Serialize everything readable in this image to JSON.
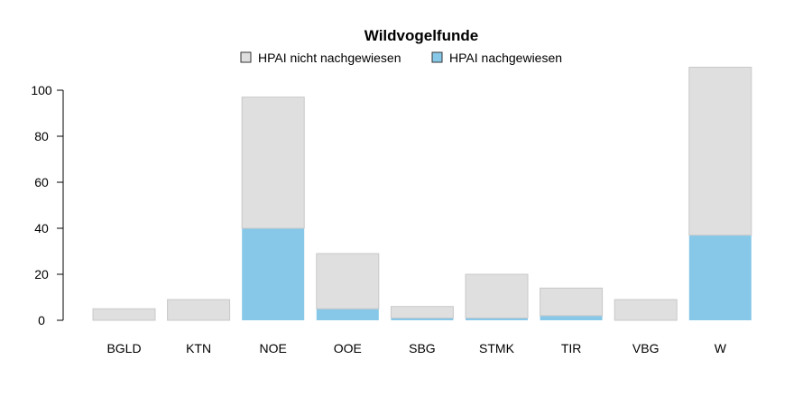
{
  "chart_data": {
    "type": "bar",
    "stacked": true,
    "title": "Wildvogelfunde",
    "xlabel": "",
    "ylabel": "",
    "categories": [
      "BGLD",
      "KTN",
      "NOE",
      "OOE",
      "SBG",
      "STMK",
      "TIR",
      "VBG",
      "W"
    ],
    "series": [
      {
        "name": "HPAI nachgewiesen",
        "color": "#87c8e8",
        "values": [
          0,
          0,
          40,
          5,
          1,
          1,
          2,
          0,
          37
        ]
      },
      {
        "name": "HPAI nicht nachgewiesen",
        "color": "#dfdfdf",
        "values": [
          5,
          9,
          57,
          24,
          5,
          19,
          12,
          9,
          73
        ]
      }
    ],
    "legend_order": [
      "HPAI nicht nachgewiesen",
      "HPAI nachgewiesen"
    ],
    "legend_position": "top",
    "ylim": [
      0,
      110
    ],
    "yticks": [
      0,
      20,
      40,
      60,
      80,
      100
    ],
    "grid": false
  }
}
